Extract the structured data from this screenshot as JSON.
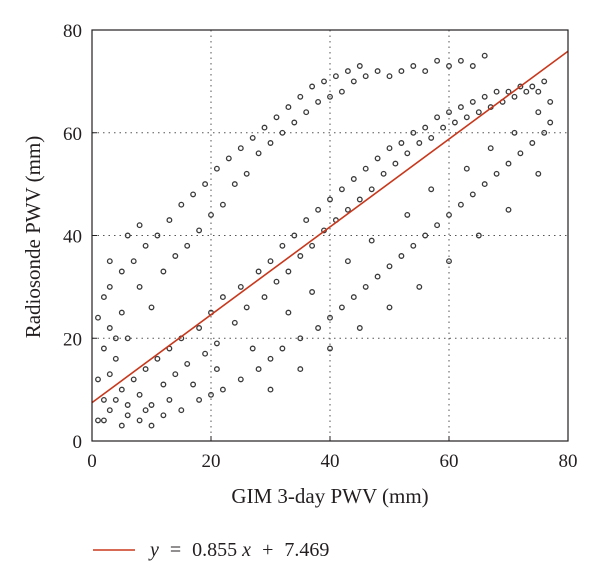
{
  "chart_data": {
    "type": "scatter",
    "title": "",
    "xlabel": "GIM 3-day PWV (mm)",
    "ylabel": "Radiosonde PWV (mm)",
    "xlim": [
      0,
      80
    ],
    "ylim": [
      0,
      80
    ],
    "xticks": [
      "0",
      "20",
      "40",
      "60",
      "80"
    ],
    "yticks": [
      "0",
      "20",
      "40",
      "60",
      "80"
    ],
    "grid": "dotted",
    "legend_position": "bottom-left",
    "legend": {
      "y_symbol": "y",
      "equals": "=",
      "slope": "0.855",
      "x_symbol": "x",
      "plus": "+",
      "intercept": "7.469"
    },
    "fit_line": {
      "slope": 0.855,
      "intercept": 7.469,
      "color": "#c8381c"
    },
    "marker_color": "#3a3a3a",
    "series": [
      {
        "points": [
          [
            2,
            4
          ],
          [
            3,
            6
          ],
          [
            4,
            8
          ],
          [
            5,
            10
          ],
          [
            6,
            5
          ],
          [
            7,
            12
          ],
          [
            8,
            9
          ],
          [
            9,
            14
          ],
          [
            10,
            7
          ],
          [
            11,
            16
          ],
          [
            12,
            11
          ],
          [
            13,
            18
          ],
          [
            14,
            13
          ],
          [
            15,
            20
          ],
          [
            16,
            15
          ],
          [
            18,
            22
          ],
          [
            19,
            17
          ],
          [
            20,
            25
          ],
          [
            21,
            19
          ],
          [
            22,
            28
          ],
          [
            24,
            23
          ],
          [
            25,
            30
          ],
          [
            26,
            26
          ],
          [
            28,
            33
          ],
          [
            29,
            28
          ],
          [
            30,
            35
          ],
          [
            31,
            31
          ],
          [
            32,
            38
          ],
          [
            33,
            33
          ],
          [
            34,
            40
          ],
          [
            35,
            36
          ],
          [
            36,
            43
          ],
          [
            37,
            38
          ],
          [
            38,
            45
          ],
          [
            39,
            41
          ],
          [
            40,
            47
          ],
          [
            41,
            43
          ],
          [
            42,
            49
          ],
          [
            43,
            45
          ],
          [
            44,
            51
          ],
          [
            45,
            47
          ],
          [
            46,
            53
          ],
          [
            47,
            49
          ],
          [
            48,
            55
          ],
          [
            49,
            52
          ],
          [
            50,
            57
          ],
          [
            51,
            54
          ],
          [
            52,
            58
          ],
          [
            53,
            56
          ],
          [
            54,
            60
          ],
          [
            55,
            58
          ],
          [
            56,
            61
          ],
          [
            57,
            59
          ],
          [
            58,
            63
          ],
          [
            59,
            61
          ],
          [
            60,
            64
          ],
          [
            61,
            62
          ],
          [
            62,
            65
          ],
          [
            63,
            63
          ],
          [
            64,
            66
          ],
          [
            65,
            64
          ],
          [
            66,
            67
          ],
          [
            67,
            65
          ],
          [
            68,
            68
          ],
          [
            69,
            66
          ],
          [
            70,
            68
          ],
          [
            71,
            67
          ],
          [
            72,
            69
          ],
          [
            73,
            68
          ],
          [
            74,
            69
          ],
          [
            75,
            68
          ],
          [
            76,
            70
          ],
          [
            1,
            12
          ],
          [
            2,
            18
          ],
          [
            3,
            22
          ],
          [
            4,
            16
          ],
          [
            5,
            25
          ],
          [
            6,
            20
          ],
          [
            8,
            30
          ],
          [
            10,
            26
          ],
          [
            12,
            33
          ],
          [
            14,
            36
          ],
          [
            16,
            38
          ],
          [
            18,
            41
          ],
          [
            20,
            44
          ],
          [
            22,
            46
          ],
          [
            24,
            50
          ],
          [
            26,
            52
          ],
          [
            28,
            56
          ],
          [
            30,
            58
          ],
          [
            32,
            60
          ],
          [
            34,
            62
          ],
          [
            36,
            64
          ],
          [
            38,
            66
          ],
          [
            40,
            67
          ],
          [
            42,
            68
          ],
          [
            44,
            70
          ],
          [
            46,
            71
          ],
          [
            48,
            72
          ],
          [
            50,
            71
          ],
          [
            52,
            72
          ],
          [
            54,
            73
          ],
          [
            56,
            72
          ],
          [
            58,
            74
          ],
          [
            60,
            73
          ],
          [
            62,
            74
          ],
          [
            64,
            73
          ],
          [
            66,
            75
          ],
          [
            5,
            3
          ],
          [
            8,
            4
          ],
          [
            10,
            3
          ],
          [
            12,
            5
          ],
          [
            15,
            6
          ],
          [
            18,
            8
          ],
          [
            20,
            9
          ],
          [
            22,
            10
          ],
          [
            25,
            12
          ],
          [
            28,
            14
          ],
          [
            30,
            16
          ],
          [
            32,
            18
          ],
          [
            35,
            20
          ],
          [
            38,
            22
          ],
          [
            40,
            24
          ],
          [
            42,
            26
          ],
          [
            44,
            28
          ],
          [
            46,
            30
          ],
          [
            48,
            32
          ],
          [
            50,
            34
          ],
          [
            52,
            36
          ],
          [
            54,
            38
          ],
          [
            56,
            40
          ],
          [
            58,
            42
          ],
          [
            60,
            44
          ],
          [
            62,
            46
          ],
          [
            64,
            48
          ],
          [
            66,
            50
          ],
          [
            68,
            52
          ],
          [
            70,
            54
          ],
          [
            72,
            56
          ],
          [
            74,
            58
          ],
          [
            76,
            60
          ],
          [
            77,
            62
          ],
          [
            3,
            30
          ],
          [
            5,
            33
          ],
          [
            7,
            35
          ],
          [
            9,
            38
          ],
          [
            11,
            40
          ],
          [
            13,
            43
          ],
          [
            15,
            46
          ],
          [
            17,
            48
          ],
          [
            19,
            50
          ],
          [
            21,
            53
          ],
          [
            23,
            55
          ],
          [
            25,
            57
          ],
          [
            27,
            59
          ],
          [
            29,
            61
          ],
          [
            31,
            63
          ],
          [
            33,
            65
          ],
          [
            35,
            67
          ],
          [
            37,
            69
          ],
          [
            39,
            70
          ],
          [
            41,
            71
          ],
          [
            43,
            72
          ],
          [
            45,
            73
          ],
          [
            6,
            7
          ],
          [
            9,
            6
          ],
          [
            13,
            8
          ],
          [
            17,
            11
          ],
          [
            21,
            14
          ],
          [
            27,
            18
          ],
          [
            33,
            25
          ],
          [
            37,
            29
          ],
          [
            43,
            35
          ],
          [
            47,
            39
          ],
          [
            53,
            44
          ],
          [
            57,
            49
          ],
          [
            63,
            53
          ],
          [
            67,
            57
          ],
          [
            71,
            60
          ],
          [
            75,
            64
          ],
          [
            1,
            4
          ],
          [
            2,
            8
          ],
          [
            3,
            13
          ],
          [
            4,
            20
          ],
          [
            1,
            24
          ],
          [
            2,
            28
          ],
          [
            3,
            35
          ],
          [
            6,
            40
          ],
          [
            8,
            42
          ],
          [
            30,
            10
          ],
          [
            35,
            14
          ],
          [
            40,
            18
          ],
          [
            45,
            22
          ],
          [
            50,
            26
          ],
          [
            55,
            30
          ],
          [
            60,
            35
          ],
          [
            65,
            40
          ],
          [
            70,
            45
          ],
          [
            75,
            52
          ],
          [
            77,
            66
          ]
        ]
      }
    ]
  }
}
